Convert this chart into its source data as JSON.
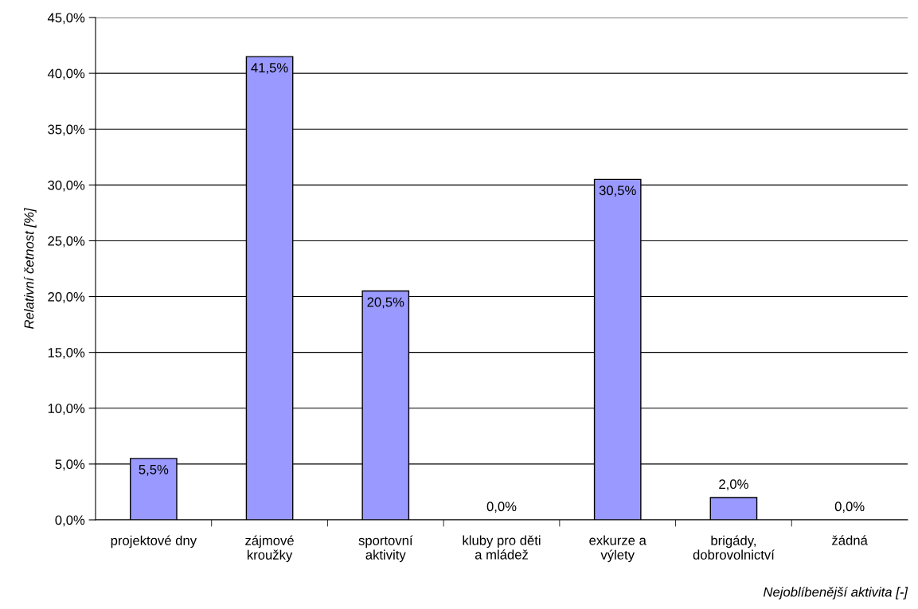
{
  "chart_data": {
    "type": "bar",
    "xlabel": "Nejoblíbenější aktivita [-]",
    "ylabel": "Relativní četnost [%]",
    "categories": [
      "projektové dny",
      "zájmové\nkroužky",
      "sportovní\naktivity",
      "kluby pro děti\na mládež",
      "exkurze a\nvýlety",
      "brigády,\ndobrovolnictví",
      "žádná"
    ],
    "values": [
      5.5,
      41.5,
      20.5,
      0,
      30.5,
      2.0,
      0
    ],
    "value_labels": [
      "5,5%",
      "41,5%",
      "20,5%",
      "0,0%",
      "30,5%",
      "2,0%",
      "0,0%"
    ],
    "color": "#9999ff",
    "ylim": [
      0,
      45
    ],
    "yticks": [
      {
        "value": 0,
        "label": "0,0%"
      },
      {
        "value": 5,
        "label": "5,0%"
      },
      {
        "value": 10,
        "label": "10,0%"
      },
      {
        "value": 15,
        "label": "15,0%"
      },
      {
        "value": 20,
        "label": "20,0%"
      },
      {
        "value": 25,
        "label": "25,0%"
      },
      {
        "value": 30,
        "label": "30,0%"
      },
      {
        "value": 35,
        "label": "35,0%"
      },
      {
        "value": 40,
        "label": "40,0%"
      },
      {
        "value": 45,
        "label": "45,0%"
      }
    ],
    "grid": "y",
    "legend": false
  }
}
